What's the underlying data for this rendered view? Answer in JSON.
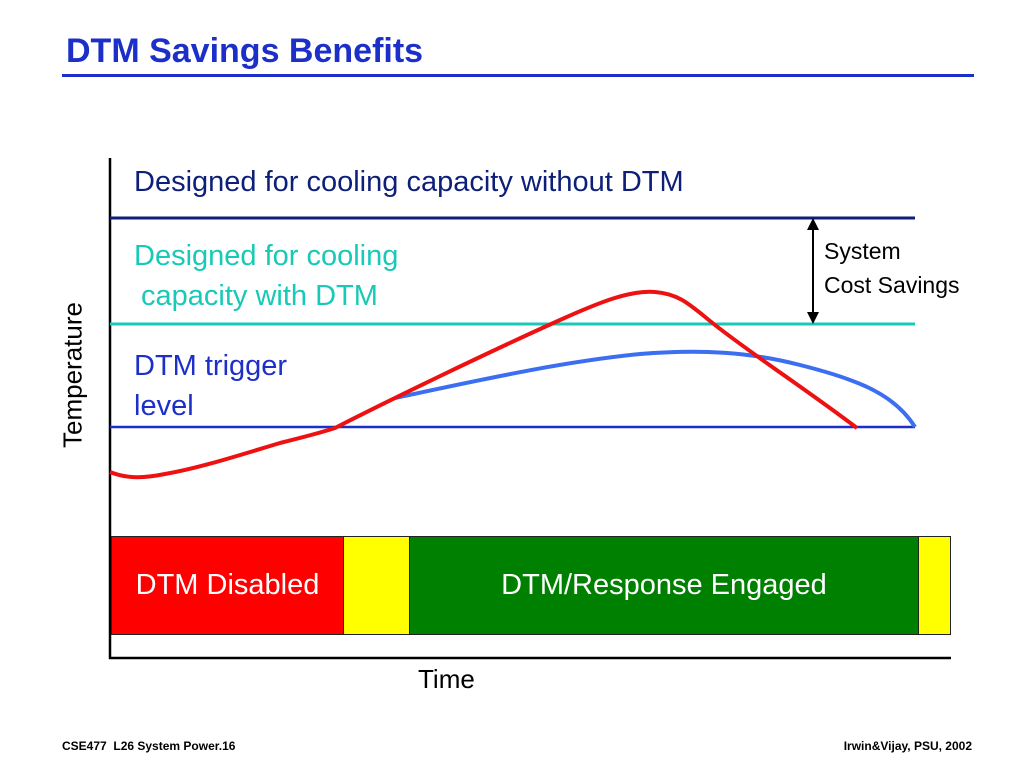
{
  "slide": {
    "title": "DTM Savings Benefits"
  },
  "diagram": {
    "label_without_dtm": "Designed for cooling capacity without DTM",
    "label_with_dtm_line1": "Designed for cooling",
    "label_with_dtm_line2": "capacity with DTM",
    "label_trigger_line1": "DTM trigger",
    "label_trigger_line2": "level",
    "label_savings_line1": "System",
    "label_savings_line2": "Cost Savings",
    "y_axis_label": "Temperature",
    "x_axis_label": "Time",
    "bar_disabled_label": "DTM Disabled",
    "bar_engaged_label": "DTM/Response Engaged",
    "colors": {
      "title": "#1c2fc8",
      "without_dtm_line": "#0d1f78",
      "with_dtm_line": "#18c9b8",
      "trigger_line": "#1c2fc8",
      "red_curve": "#ee1111",
      "blue_curve": "#3b6ef0",
      "disabled_bar": "#ff0000",
      "transition_bar": "#ffff00",
      "engaged_bar": "#008000"
    }
  },
  "footer": {
    "left": "CSE477  L26 System Power.16",
    "right": "Irwin&Vijay, PSU, 2002"
  }
}
